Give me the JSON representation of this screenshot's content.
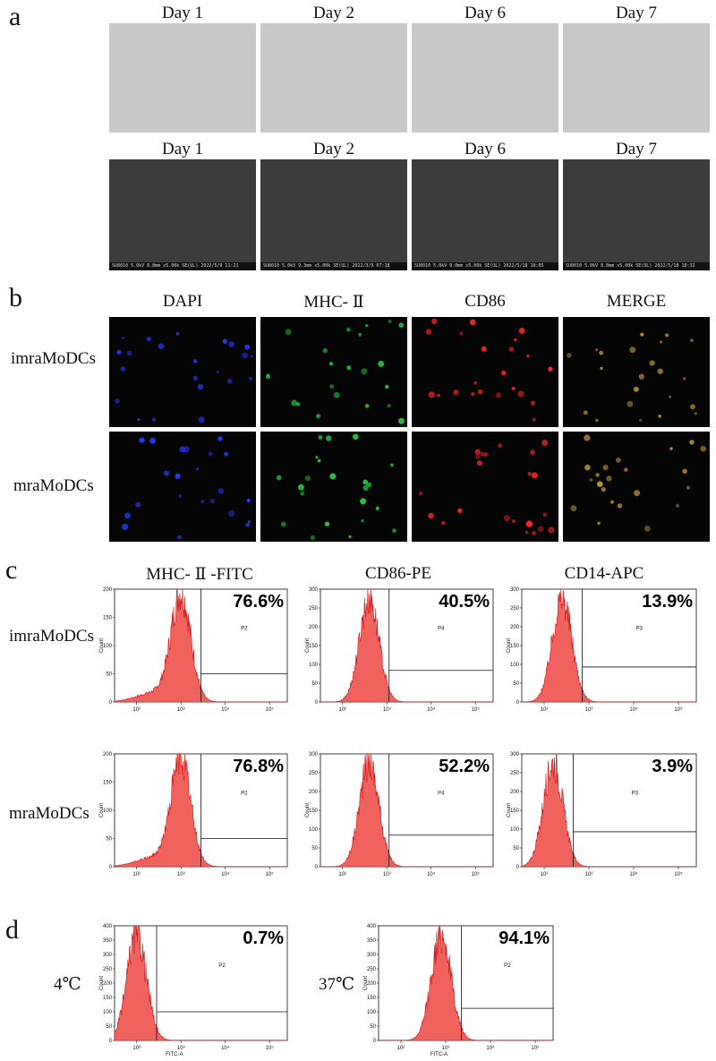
{
  "panel_a": {
    "letter": "a",
    "columns": [
      "Day 1",
      "Day 2",
      "Day 6",
      "Day 7"
    ],
    "sem_footers": [
      "SU8010 5.0kV 8.8mm x5.00k SE(UL) 2022/5/9 11:21",
      "SU8010 5.0kV 9.3mm x5.00k SE(UL) 2022/3/9 07:18",
      "SU8010 5.0kV 9.0mm x5.00k SE(UL) 2022/5/18 10:05",
      "SU8010 5.0kV 8.8mm x5.00k SE(UL) 2022/5/18 10:32"
    ],
    "sem_scale": "10.0um"
  },
  "panel_b": {
    "letter": "b",
    "columns": [
      "DAPI",
      "MHC- Ⅱ",
      "CD86",
      "MERGE"
    ],
    "rows": [
      "imraMoDCs",
      "mraMoDCs"
    ],
    "channel_colors": [
      "#2a3aff",
      "#2bd04a",
      "#ff2a2a",
      "#c9a040"
    ]
  },
  "panel_c": {
    "letter": "c",
    "columns": [
      "MHC- Ⅱ -FITC",
      "CD86-PE",
      "CD14-APC"
    ],
    "rows": [
      "imraMoDCs",
      "mraMoDCs"
    ]
  },
  "panel_d": {
    "letter": "d",
    "rows": [
      "4℃",
      "37℃"
    ]
  },
  "histogram_text": {
    "y_axis": "Count",
    "x_axis_d": "FITC-A"
  },
  "chart_data": [
    {
      "type": "area",
      "panel": "c",
      "row": "imraMoDCs",
      "marker": "MHC- Ⅱ -FITC",
      "gate": "P2",
      "percent": "76.6%",
      "ylim": [
        0,
        200
      ],
      "yticks": [
        "0",
        "50",
        "100",
        "150",
        "200"
      ],
      "xticks": [
        "10²",
        "10³",
        "10⁴",
        "10⁵"
      ],
      "peak_log10": 3.0
    },
    {
      "type": "area",
      "panel": "c",
      "row": "imraMoDCs",
      "marker": "CD86-PE",
      "gate": "P4",
      "percent": "40.5%",
      "ylim": [
        0,
        300
      ],
      "yticks": [
        "0",
        "50",
        "100",
        "150",
        "200",
        "250",
        "300"
      ],
      "xticks": [
        "10²",
        "10³",
        "10⁴",
        "10⁵"
      ],
      "peak_log10": 2.6
    },
    {
      "type": "area",
      "panel": "c",
      "row": "imraMoDCs",
      "marker": "CD14-APC",
      "gate": "P3",
      "percent": "13.9%",
      "ylim": [
        0,
        300
      ],
      "yticks": [
        "0",
        "50",
        "100",
        "150",
        "200",
        "250",
        "300"
      ],
      "xticks": [
        "10²",
        "10³",
        "10⁴",
        "10⁵"
      ],
      "peak_log10": 2.4
    },
    {
      "type": "area",
      "panel": "c",
      "row": "mraMoDCs",
      "marker": "MHC- Ⅱ -FITC",
      "gate": "P2",
      "percent": "76.8%",
      "ylim": [
        0,
        200
      ],
      "yticks": [
        "0",
        "50",
        "100",
        "150",
        "200"
      ],
      "xticks": [
        "10²",
        "10³",
        "10⁴",
        "10⁵"
      ],
      "peak_log10": 3.0
    },
    {
      "type": "area",
      "panel": "c",
      "row": "mraMoDCs",
      "marker": "CD86-PE",
      "gate": "P4",
      "percent": "52.2%",
      "ylim": [
        0,
        300
      ],
      "yticks": [
        "0",
        "50",
        "100",
        "150",
        "200",
        "250",
        "300"
      ],
      "xticks": [
        "10²",
        "10³",
        "10⁴",
        "10⁵"
      ],
      "peak_log10": 2.6
    },
    {
      "type": "area",
      "panel": "c",
      "row": "mraMoDCs",
      "marker": "CD14-APC",
      "gate": "P3",
      "percent": "3.9%",
      "ylim": [
        0,
        300
      ],
      "yticks": [
        "0",
        "50",
        "100",
        "150",
        "200",
        "250",
        "300"
      ],
      "xticks": [
        "10²",
        "10³",
        "10⁴",
        "10⁵"
      ],
      "peak_log10": 2.2
    },
    {
      "type": "area",
      "panel": "d",
      "row": "4℃",
      "marker": "FITC-A",
      "gate": "P2",
      "percent": "0.7%",
      "ylim": [
        0,
        400
      ],
      "yticks": [
        "0",
        "50",
        "100",
        "150",
        "200",
        "250",
        "300",
        "350",
        "400"
      ],
      "xticks": [
        "10²",
        "10³",
        "10⁴",
        "10⁵"
      ],
      "peak_log10": 2.0
    },
    {
      "type": "area",
      "panel": "d",
      "row": "37℃",
      "marker": "FITC-A",
      "gate": "P2",
      "percent": "94.1%",
      "ylim": [
        0,
        400
      ],
      "yticks": [
        "0",
        "50",
        "100",
        "150",
        "200",
        "250",
        "300",
        "350",
        "400"
      ],
      "xticks": [
        "10²",
        "10³",
        "10⁴",
        "10⁵"
      ],
      "peak_log10": 2.9
    }
  ]
}
